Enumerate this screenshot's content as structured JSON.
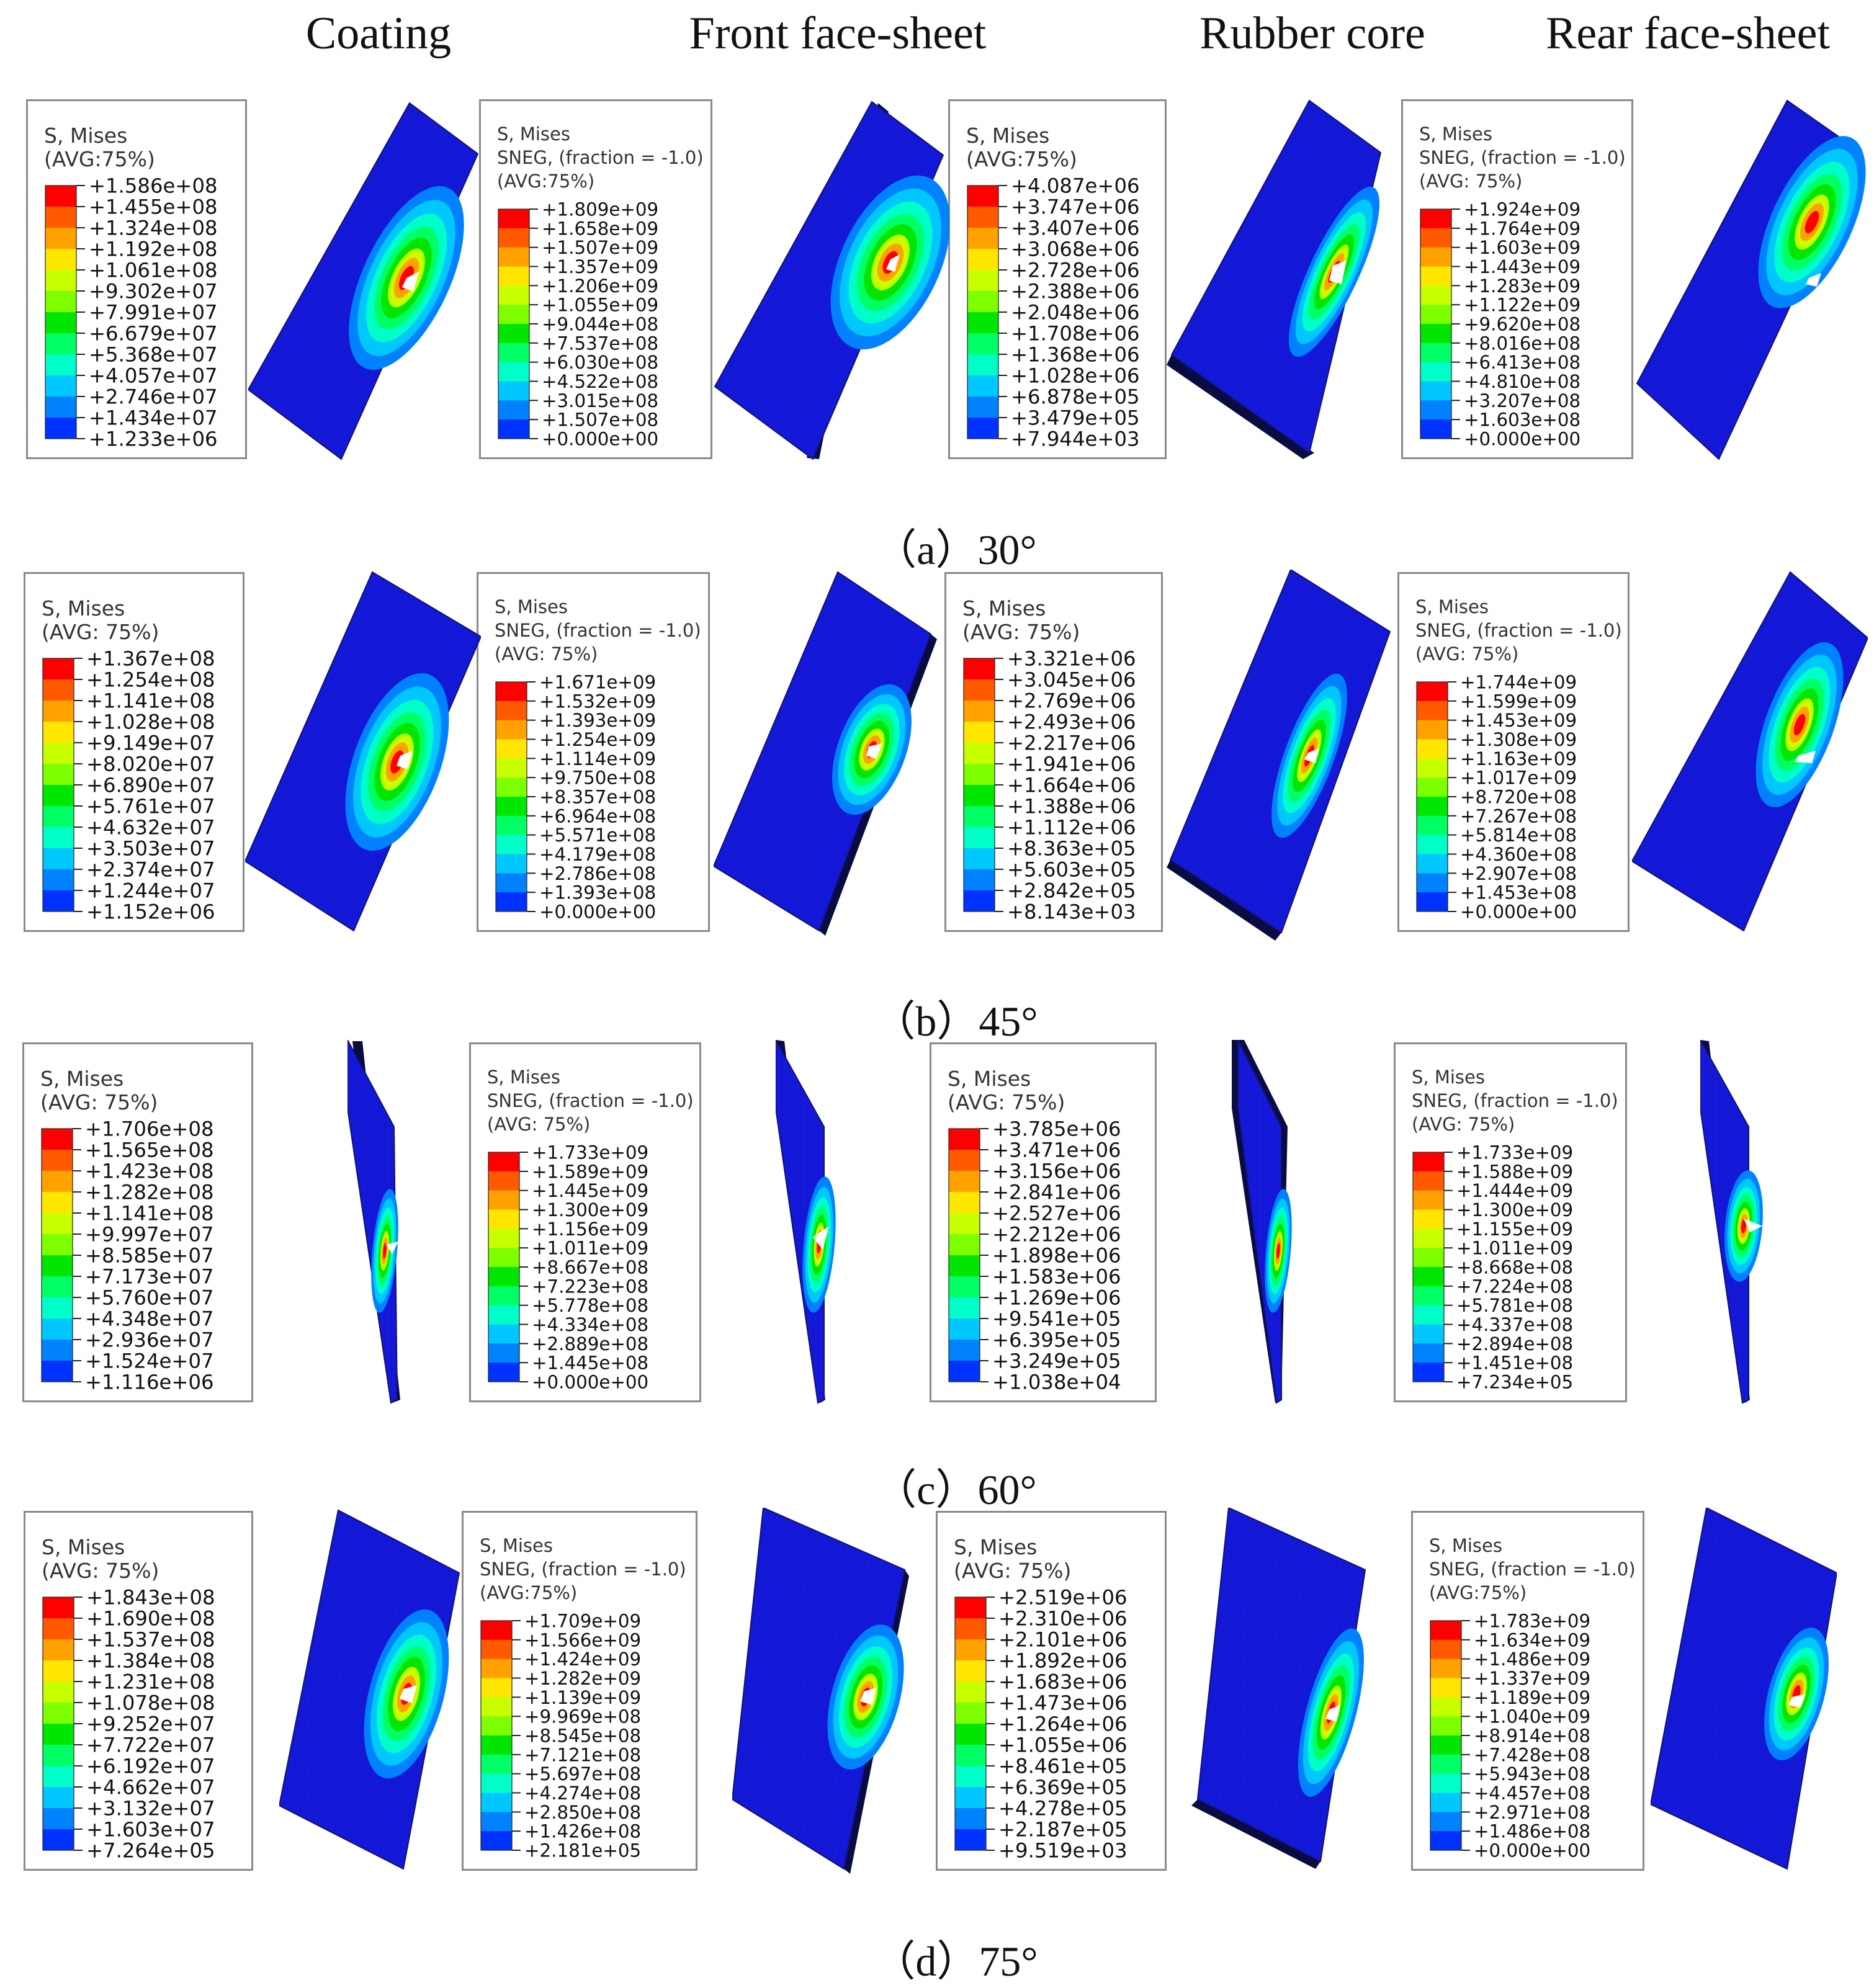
{
  "headers": [
    "Coating",
    "Front face-sheet",
    "Rubber core",
    "Rear face-sheet"
  ],
  "rows": [
    {
      "caption": "（a）30°",
      "legends": [
        {
          "lines": [
            "S, Mises",
            "(AVG:75%)"
          ],
          "values": [
            "+1.586e+08",
            "+1.455e+08",
            "+1.324e+08",
            "+1.192e+08",
            "+1.061e+08",
            "+9.302e+07",
            "+7.991e+07",
            "+6.679e+07",
            "+5.368e+07",
            "+4.057e+07",
            "+2.746e+07",
            "+1.434e+07",
            "+1.233e+06"
          ]
        },
        {
          "lines": [
            "S, Mises",
            "SNEG, (fraction = -1.0)",
            "(AVG:75%)"
          ],
          "values": [
            "+1.809e+09",
            "+1.658e+09",
            "+1.507e+09",
            "+1.357e+09",
            "+1.206e+09",
            "+1.055e+09",
            "+9.044e+08",
            "+7.537e+08",
            "+6.030e+08",
            "+4.522e+08",
            "+3.015e+08",
            "+1.507e+08",
            "+0.000e+00"
          ]
        },
        {
          "lines": [
            "S, Mises",
            "(AVG:75%)"
          ],
          "values": [
            "+4.087e+06",
            "+3.747e+06",
            "+3.407e+06",
            "+3.068e+06",
            "+2.728e+06",
            "+2.388e+06",
            "+2.048e+06",
            "+1.708e+06",
            "+1.368e+06",
            "+1.028e+06",
            "+6.878e+05",
            "+3.479e+05",
            "+7.944e+03"
          ]
        },
        {
          "lines": [
            "S, Mises",
            "SNEG, (fraction = -1.0)",
            "(AVG: 75%)"
          ],
          "values": [
            "+1.924e+09",
            "+1.764e+09",
            "+1.603e+09",
            "+1.443e+09",
            "+1.283e+09",
            "+1.122e+09",
            "+9.620e+08",
            "+8.016e+08",
            "+6.413e+08",
            "+4.810e+08",
            "+3.207e+08",
            "+1.603e+08",
            "+0.000e+00"
          ]
        }
      ]
    },
    {
      "caption": "（b）45°",
      "legends": [
        {
          "lines": [
            "S, Mises",
            "(AVG: 75%)"
          ],
          "values": [
            "+1.367e+08",
            "+1.254e+08",
            "+1.141e+08",
            "+1.028e+08",
            "+9.149e+07",
            "+8.020e+07",
            "+6.890e+07",
            "+5.761e+07",
            "+4.632e+07",
            "+3.503e+07",
            "+2.374e+07",
            "+1.244e+07",
            "+1.152e+06"
          ]
        },
        {
          "lines": [
            "S, Mises",
            "SNEG, (fraction = -1.0)",
            "(AVG: 75%)"
          ],
          "values": [
            "+1.671e+09",
            "+1.532e+09",
            "+1.393e+09",
            "+1.254e+09",
            "+1.114e+09",
            "+9.750e+08",
            "+8.357e+08",
            "+6.964e+08",
            "+5.571e+08",
            "+4.179e+08",
            "+2.786e+08",
            "+1.393e+08",
            "+0.000e+00"
          ]
        },
        {
          "lines": [
            "S, Mises",
            "(AVG: 75%)"
          ],
          "values": [
            "+3.321e+06",
            "+3.045e+06",
            "+2.769e+06",
            "+2.493e+06",
            "+2.217e+06",
            "+1.941e+06",
            "+1.664e+06",
            "+1.388e+06",
            "+1.112e+06",
            "+8.363e+05",
            "+5.603e+05",
            "+2.842e+05",
            "+8.143e+03"
          ]
        },
        {
          "lines": [
            "S, Mises",
            "SNEG, (fraction = -1.0)",
            "(AVG: 75%)"
          ],
          "values": [
            "+1.744e+09",
            "+1.599e+09",
            "+1.453e+09",
            "+1.308e+09",
            "+1.163e+09",
            "+1.017e+09",
            "+8.720e+08",
            "+7.267e+08",
            "+5.814e+08",
            "+4.360e+08",
            "+2.907e+08",
            "+1.453e+08",
            "+0.000e+00"
          ]
        }
      ]
    },
    {
      "caption": "（c）60°",
      "legends": [
        {
          "lines": [
            "S, Mises",
            "(AVG: 75%)"
          ],
          "values": [
            "+1.706e+08",
            "+1.565e+08",
            "+1.423e+08",
            "+1.282e+08",
            "+1.141e+08",
            "+9.997e+07",
            "+8.585e+07",
            "+7.173e+07",
            "+5.760e+07",
            "+4.348e+07",
            "+2.936e+07",
            "+1.524e+07",
            "+1.116e+06"
          ]
        },
        {
          "lines": [
            "S, Mises",
            "SNEG, (fraction = -1.0)",
            "(AVG: 75%)"
          ],
          "values": [
            "+1.733e+09",
            "+1.589e+09",
            "+1.445e+09",
            "+1.300e+09",
            "+1.156e+09",
            "+1.011e+09",
            "+8.667e+08",
            "+7.223e+08",
            "+5.778e+08",
            "+4.334e+08",
            "+2.889e+08",
            "+1.445e+08",
            "+0.000e+00"
          ]
        },
        {
          "lines": [
            "S, Mises",
            "(AVG: 75%)"
          ],
          "values": [
            "+3.785e+06",
            "+3.471e+06",
            "+3.156e+06",
            "+2.841e+06",
            "+2.527e+06",
            "+2.212e+06",
            "+1.898e+06",
            "+1.583e+06",
            "+1.269e+06",
            "+9.541e+05",
            "+6.395e+05",
            "+3.249e+05",
            "+1.038e+04"
          ]
        },
        {
          "lines": [
            "S, Mises",
            "SNEG, (fraction = -1.0)",
            "(AVG: 75%)"
          ],
          "values": [
            "+1.733e+09",
            "+1.588e+09",
            "+1.444e+09",
            "+1.300e+09",
            "+1.155e+09",
            "+1.011e+09",
            "+8.668e+08",
            "+7.224e+08",
            "+5.781e+08",
            "+4.337e+08",
            "+2.894e+08",
            "+1.451e+08",
            "+7.234e+05"
          ]
        }
      ]
    },
    {
      "caption": "（d）75°",
      "legends": [
        {
          "lines": [
            "S, Mises",
            "(AVG: 75%)"
          ],
          "values": [
            "+1.843e+08",
            "+1.690e+08",
            "+1.537e+08",
            "+1.384e+08",
            "+1.231e+08",
            "+1.078e+08",
            "+9.252e+07",
            "+7.722e+07",
            "+6.192e+07",
            "+4.662e+07",
            "+3.132e+07",
            "+1.603e+07",
            "+7.264e+05"
          ]
        },
        {
          "lines": [
            "S, Mises",
            "SNEG, (fraction = -1.0)",
            "(AVG:75%)"
          ],
          "values": [
            "+1.709e+09",
            "+1.566e+09",
            "+1.424e+09",
            "+1.282e+09",
            "+1.139e+09",
            "+9.969e+08",
            "+8.545e+08",
            "+7.121e+08",
            "+5.697e+08",
            "+4.274e+08",
            "+2.850e+08",
            "+1.426e+08",
            "+2.181e+05"
          ]
        },
        {
          "lines": [
            "S, Mises",
            "(AVG: 75%)"
          ],
          "values": [
            "+2.519e+06",
            "+2.310e+06",
            "+2.101e+06",
            "+1.892e+06",
            "+1.683e+06",
            "+1.473e+06",
            "+1.264e+06",
            "+1.055e+06",
            "+8.461e+05",
            "+6.369e+05",
            "+4.278e+05",
            "+2.187e+05",
            "+9.519e+03"
          ]
        },
        {
          "lines": [
            "S, Mises",
            "SNEG, (fraction = -1.0)",
            "(AVG:75%)"
          ],
          "values": [
            "+1.783e+09",
            "+1.634e+09",
            "+1.486e+09",
            "+1.337e+09",
            "+1.189e+09",
            "+1.040e+09",
            "+8.914e+08",
            "+7.428e+08",
            "+5.943e+08",
            "+4.457e+08",
            "+2.971e+08",
            "+1.486e+08",
            "+0.000e+00"
          ]
        }
      ]
    }
  ],
  "colormap": [
    "#ff0000",
    "#ff5a00",
    "#ffa200",
    "#ffe600",
    "#c8ff00",
    "#7dff00",
    "#00e600",
    "#00ff64",
    "#00ffc8",
    "#00c8ff",
    "#0082ff",
    "#0032ff",
    "#0000ff"
  ],
  "plate_color": "#1418d8",
  "plate_edge": "#05066a"
}
